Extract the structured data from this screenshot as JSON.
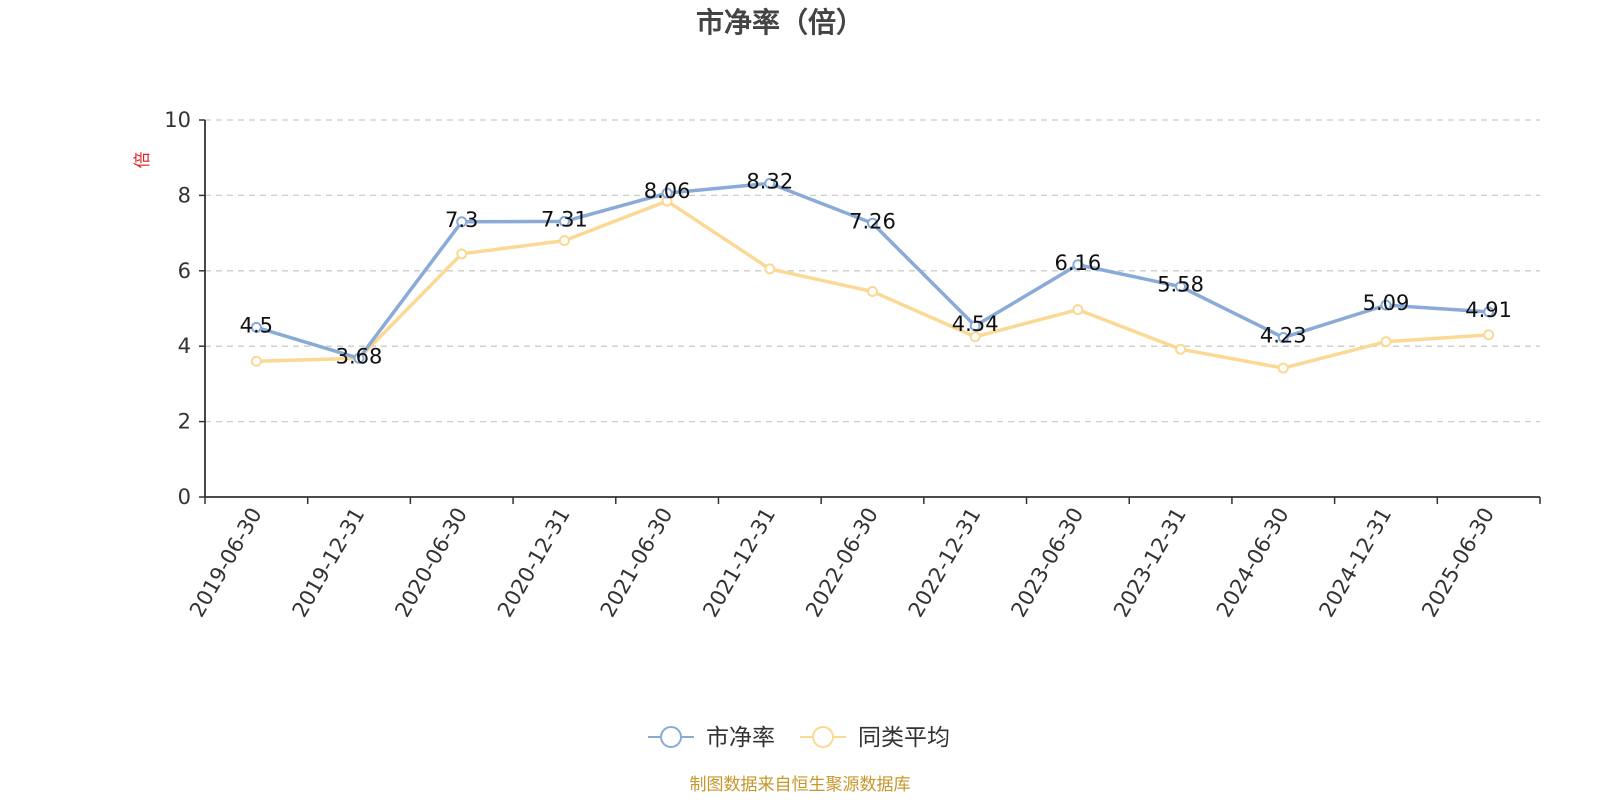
{
  "chart_data": {
    "type": "line",
    "title": "市净率（倍）",
    "ylabel": "倍",
    "ylim": [
      0,
      10
    ],
    "yticks": [
      0,
      2,
      4,
      6,
      8,
      10
    ],
    "grid": "horizontal dashed",
    "legend_position": "bottom",
    "categories": [
      "2019-06-30",
      "2019-12-31",
      "2020-06-30",
      "2020-12-31",
      "2021-06-30",
      "2021-12-31",
      "2022-06-30",
      "2022-12-31",
      "2023-06-30",
      "2023-12-31",
      "2024-06-30",
      "2024-12-31",
      "2025-06-30"
    ],
    "series": [
      {
        "name": "市净率",
        "color": "#8aaad8",
        "values": [
          4.5,
          3.68,
          7.3,
          7.31,
          8.06,
          8.32,
          7.26,
          4.54,
          6.16,
          5.58,
          4.23,
          5.09,
          4.91
        ],
        "labels": [
          "4.5",
          "3.68",
          "7.3",
          "7.31",
          "8.06",
          "8.32",
          "7.26",
          "4.54",
          "6.16",
          "5.58",
          "4.23",
          "5.09",
          "4.91"
        ]
      },
      {
        "name": "同类平均",
        "color": "#fbd994",
        "values": [
          3.6,
          3.68,
          6.45,
          6.8,
          7.85,
          6.05,
          5.45,
          4.25,
          4.97,
          3.92,
          3.42,
          4.12,
          4.3
        ]
      }
    ],
    "source": "制图数据来自恒生聚源数据库"
  },
  "colors": {
    "axis": "#333333",
    "grid": "#cccccc",
    "unit_label": "#e02020",
    "source_text": "#c8962a"
  }
}
